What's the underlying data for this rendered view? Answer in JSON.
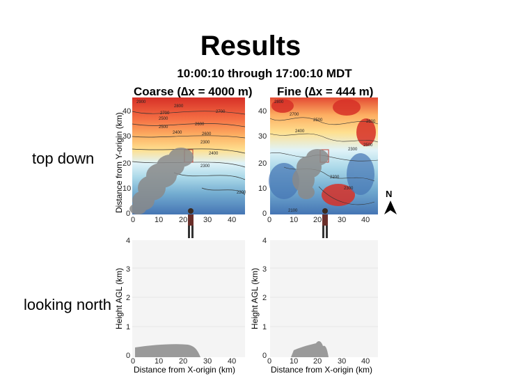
{
  "slide": {
    "title": "Results",
    "subtitle": "10:00:10 through 17:00:10 MDT",
    "coarse_label": "Coarse (∆x = 4000 m)",
    "fine_label": "Fine (∆x = 444 m)",
    "row_top": "top down",
    "row_bottom": "looking north",
    "top_ylabel": "Distance from Y-origin (km)",
    "bottom_ylabel": "Height AGL (km)",
    "xlabel": "Distance from X-origin (km)",
    "north": "N",
    "map_xticks": [
      "0",
      "10",
      "20",
      "30",
      "40"
    ],
    "map_yticks": [
      "0",
      "10",
      "20",
      "30",
      "40"
    ],
    "side_yticks": [
      "0",
      "1",
      "2",
      "3",
      "4"
    ],
    "coarse_contours": [
      "2800",
      "2700",
      "2600",
      "2500",
      "2400",
      "2300",
      "2200",
      "2900",
      "2700",
      "2600",
      "2500",
      "2400",
      "2300"
    ],
    "fine_contours": [
      "2800",
      "2700",
      "2500",
      "2600",
      "2400",
      "2300",
      "2500",
      "2200",
      "2300",
      "2100"
    ],
    "colors": {
      "high": "#d73027",
      "mid": "#fee090",
      "low": "#4575b4",
      "plume": "#808080"
    }
  }
}
